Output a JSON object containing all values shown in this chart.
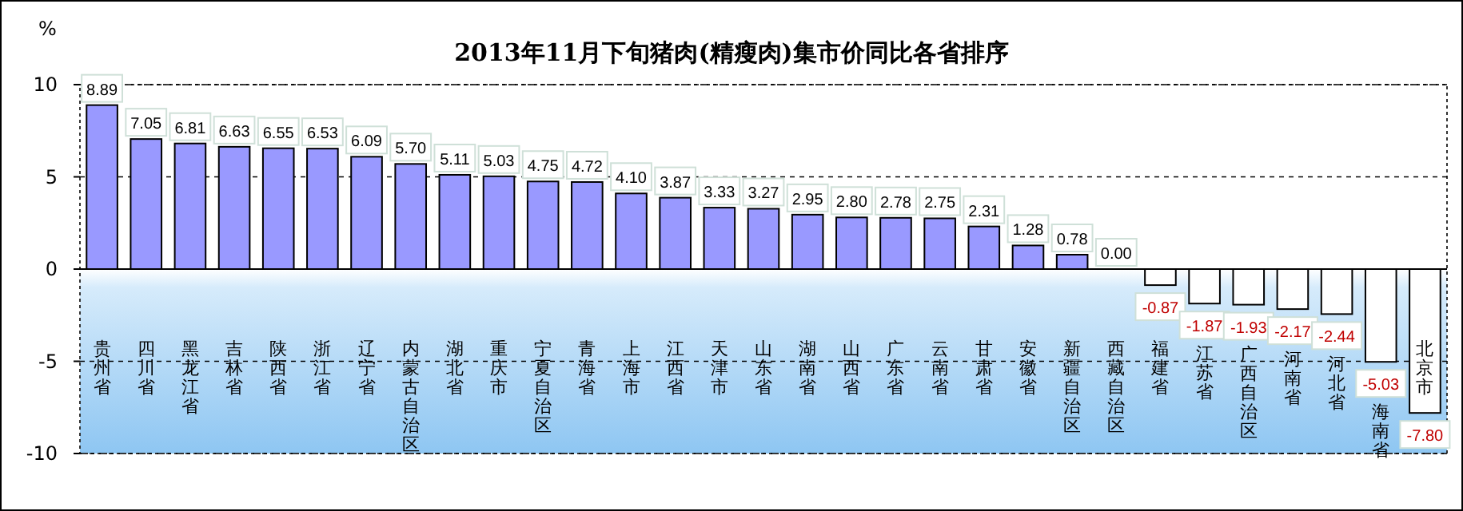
{
  "chart_data": {
    "type": "bar",
    "title": "2013年11月下旬猪肉(精瘦肉)集市价同比各省排序",
    "ylabel": "%",
    "categories": [
      "贵州省",
      "四川省",
      "黑龙江省",
      "吉林省",
      "陕西省",
      "浙江省",
      "辽宁省",
      "内蒙古自治区",
      "湖北省",
      "重庆市",
      "宁夏自治区",
      "青海省",
      "上海市",
      "江西省",
      "天津市",
      "山东省",
      "湖南省",
      "山西省",
      "广东省",
      "云南省",
      "甘肃省",
      "安徽省",
      "新疆自治区",
      "西藏自治区",
      "福建省",
      "江苏省",
      "广西自治区",
      "河南省",
      "河北省",
      "海南省",
      "北京市"
    ],
    "values": [
      8.89,
      7.05,
      6.81,
      6.63,
      6.55,
      6.53,
      6.09,
      5.7,
      5.11,
      5.03,
      4.75,
      4.72,
      4.1,
      3.87,
      3.33,
      3.27,
      2.95,
      2.8,
      2.78,
      2.75,
      2.31,
      1.28,
      0.78,
      0.0,
      -0.87,
      -1.87,
      -1.93,
      -2.17,
      -2.44,
      -5.03,
      -7.8
    ],
    "colors": [
      "#9999ff",
      "#9999ff",
      "#9999ff",
      "#9999ff",
      "#9999ff",
      "#9999ff",
      "#9999ff",
      "#9999ff",
      "#9999ff",
      "#9999ff",
      "#9999ff",
      "#9999ff",
      "#9999ff",
      "#9999ff",
      "#9999ff",
      "#9999ff",
      "#9999ff",
      "#9999ff",
      "#9999ff",
      "#9999ff",
      "#9999ff",
      "#9999ff",
      "#9999ff",
      "#9999ff",
      "#ffffff",
      "#ffffff",
      "#ffffff",
      "#ffffff",
      "#ffffff",
      "#ffffff",
      "#ffffff"
    ],
    "value_labels": [
      "8.89",
      "7.05",
      "6.81",
      "6.63",
      "6.55",
      "6.53",
      "6.09",
      "5.70",
      "5.11",
      "5.03",
      "4.75",
      "4.72",
      "4.10",
      "3.87",
      "3.33",
      "3.27",
      "2.95",
      "2.80",
      "2.78",
      "2.75",
      "2.31",
      "1.28",
      "0.78",
      "0.00",
      "-0.87",
      "-1.87",
      "-1.93",
      "-2.17",
      "-2.44",
      "-5.03",
      "-7.80"
    ],
    "ylim": [
      -10,
      10
    ],
    "yticks": [
      -10,
      -5,
      0,
      5,
      10
    ],
    "grid": "y"
  }
}
